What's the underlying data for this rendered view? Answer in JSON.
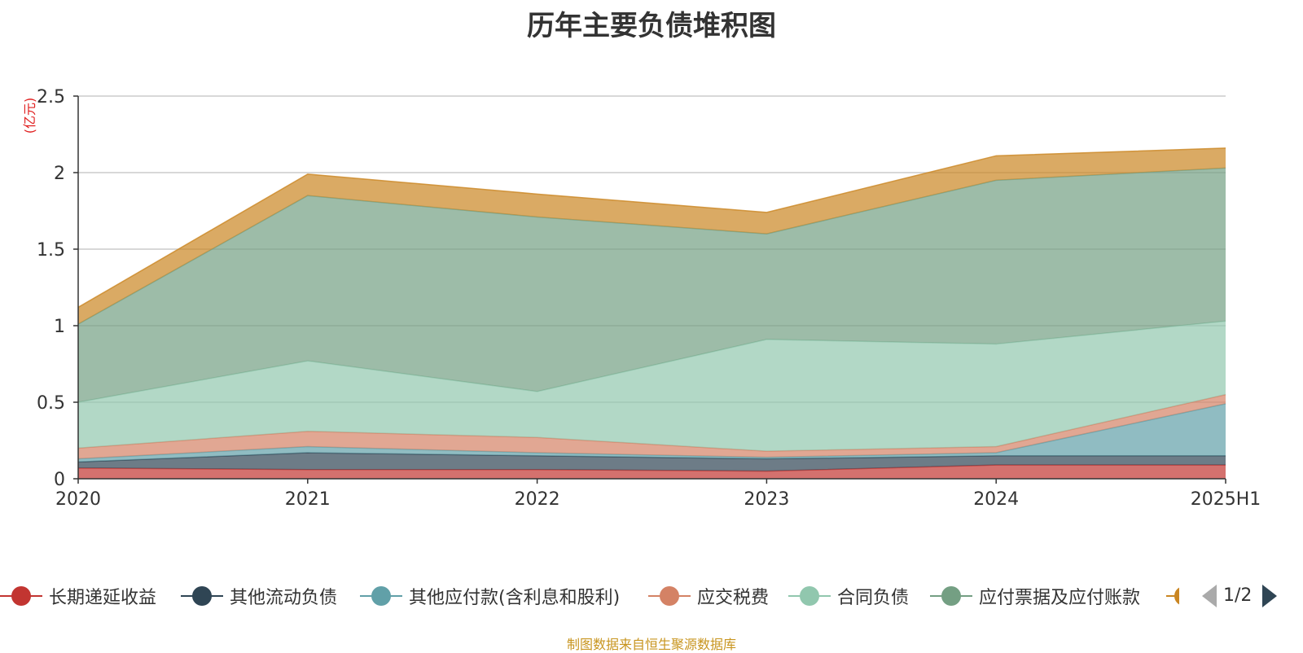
{
  "title": "历年主要负债堆积图",
  "footer": "制图数据来自恒生聚源数据库",
  "legend_page": "1/2",
  "chart_data": {
    "type": "area",
    "stacked": true,
    "title": "历年主要负债堆积图",
    "ylabel": "(亿元)",
    "xlabel": "",
    "categories": [
      "2020",
      "2021",
      "2022",
      "2023",
      "2024",
      "2025H1"
    ],
    "ylim": [
      0,
      2.5
    ],
    "yticks": [
      "0",
      "0.5",
      "1",
      "1.5",
      "2",
      "2.5"
    ],
    "grid": true,
    "legend_position": "bottom",
    "series": [
      {
        "name": "长期递延收益",
        "color": "#c23531",
        "values": [
          0.07,
          0.06,
          0.06,
          0.05,
          0.09,
          0.09
        ]
      },
      {
        "name": "其他流动负债",
        "color": "#2f4554",
        "values": [
          0.04,
          0.11,
          0.09,
          0.08,
          0.06,
          0.06
        ]
      },
      {
        "name": "其他应付款(含利息和股利)",
        "color": "#61a0a8",
        "values": [
          0.02,
          0.04,
          0.02,
          0.01,
          0.02,
          0.34
        ]
      },
      {
        "name": "应交税费",
        "color": "#d48265",
        "values": [
          0.07,
          0.1,
          0.1,
          0.04,
          0.04,
          0.06
        ]
      },
      {
        "name": "合同负债",
        "color": "#91c7ae",
        "values": [
          0.3,
          0.46,
          0.3,
          0.73,
          0.67,
          0.48
        ]
      },
      {
        "name": "应付票据及应付账款",
        "color": "#749f83",
        "values": [
          0.51,
          1.08,
          1.14,
          0.69,
          1.07,
          1.0
        ]
      },
      {
        "name": "",
        "color": "#ca8622",
        "values": [
          0.11,
          0.14,
          0.15,
          0.14,
          0.16,
          0.13
        ]
      }
    ]
  }
}
